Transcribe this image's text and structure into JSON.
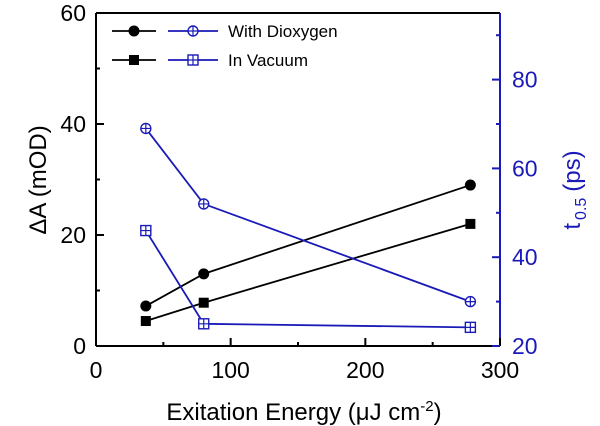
{
  "chart_data": {
    "type": "line",
    "xlabel": "Exitation Energy (μJ cm",
    "xlabel_sup": "-2",
    "xlabel_close": ")",
    "xlim": [
      0,
      300
    ],
    "xticks": [
      "0",
      "100",
      "200",
      "300"
    ],
    "ylabel_left": "ΔA (mOD)",
    "ylim_left": [
      0,
      60
    ],
    "yticks_left": [
      "0",
      "20",
      "40",
      "60"
    ],
    "ylabel_right_main": "t",
    "ylabel_right_sub": "0.5",
    "ylabel_right_tail": "(ps)",
    "ylim_right": [
      20,
      95
    ],
    "yticks_right": [
      "20",
      "40",
      "60",
      "80"
    ],
    "colors": {
      "left_axis": "#000000",
      "right_axis": "#1a1ab8",
      "black_series": "#000000",
      "blue_series": "#1a1ab8"
    },
    "legend": {
      "position": "top-left",
      "entries": [
        "With Dioxygen",
        "In Vacuum"
      ]
    },
    "series": [
      {
        "axis": "left",
        "marker": "circle",
        "color": "#000000",
        "x": [
          37,
          80,
          278
        ],
        "y": [
          7.2,
          13,
          29
        ]
      },
      {
        "axis": "left",
        "marker": "square",
        "color": "#000000",
        "x": [
          37,
          80,
          278
        ],
        "y": [
          4.5,
          7.8,
          22
        ]
      },
      {
        "axis": "right",
        "marker": "circle-plus",
        "color": "#1a1ab8",
        "x": [
          37,
          80,
          278
        ],
        "y": [
          69,
          52,
          30
        ]
      },
      {
        "axis": "right",
        "marker": "square-plus",
        "color": "#1a1ab8",
        "x": [
          37,
          80,
          278
        ],
        "y": [
          46,
          25,
          24.2
        ]
      }
    ]
  }
}
